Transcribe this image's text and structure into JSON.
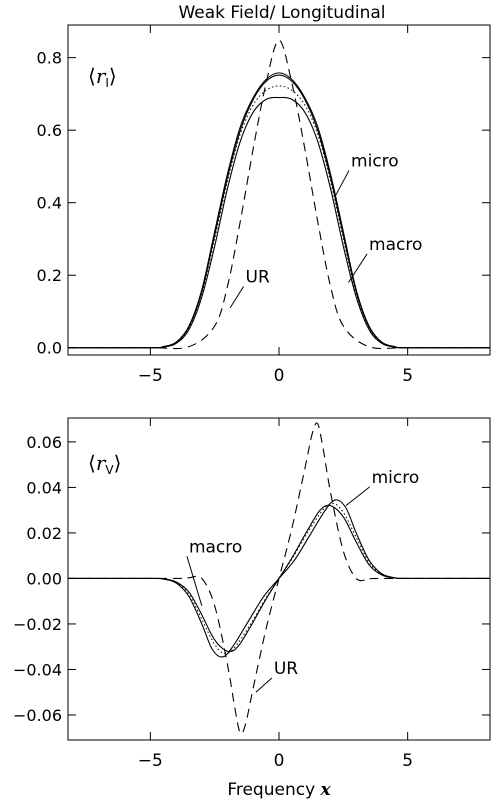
{
  "figure_title": "Weak Field/ Longitudinal",
  "xlabel_text": "Frequency",
  "xlabel_symbol": "x",
  "chart_data": [
    {
      "type": "line",
      "panel": "top",
      "label": {
        "symbol": "r",
        "subscript": "I"
      },
      "xlim": [
        -8.2,
        8.2
      ],
      "ylim": [
        -0.02,
        0.89
      ],
      "x_ticks": [
        -5,
        0,
        5
      ],
      "x_tick_labels": [
        "−5",
        "0",
        "5"
      ],
      "y_ticks": [
        0.0,
        0.2,
        0.4,
        0.6,
        0.8
      ],
      "y_tick_labels": [
        "0.0",
        "0.2",
        "0.4",
        "0.6",
        "0.8"
      ],
      "series": [
        {
          "name": "UR",
          "style": "dashed",
          "points": [
            [
              -8.2,
              0
            ],
            [
              -5,
              0
            ],
            [
              -3.5,
              0.003
            ],
            [
              -2.5,
              0.06
            ],
            [
              -2,
              0.17
            ],
            [
              -1.5,
              0.35
            ],
            [
              -1,
              0.55
            ],
            [
              -0.5,
              0.73
            ],
            [
              0,
              0.848
            ],
            [
              0.5,
              0.73
            ],
            [
              1,
              0.55
            ],
            [
              1.5,
              0.35
            ],
            [
              2,
              0.17
            ],
            [
              2.5,
              0.06
            ],
            [
              3.5,
              0.003
            ],
            [
              5,
              0
            ],
            [
              8.2,
              0
            ]
          ]
        },
        {
          "name": "micro",
          "style": "solid",
          "points": [
            [
              -8.2,
              0
            ],
            [
              -5,
              0
            ],
            [
              -4.5,
              0.003
            ],
            [
              -4,
              0.015
            ],
            [
              -3.5,
              0.06
            ],
            [
              -3,
              0.16
            ],
            [
              -2.5,
              0.32
            ],
            [
              -2,
              0.48
            ],
            [
              -1.5,
              0.61
            ],
            [
              -1,
              0.69
            ],
            [
              -0.5,
              0.74
            ],
            [
              0,
              0.758
            ],
            [
              0.5,
              0.74
            ],
            [
              1,
              0.69
            ],
            [
              1.5,
              0.61
            ],
            [
              2,
              0.48
            ],
            [
              2.5,
              0.32
            ],
            [
              3,
              0.16
            ],
            [
              3.5,
              0.06
            ],
            [
              4,
              0.015
            ],
            [
              4.5,
              0.003
            ],
            [
              5,
              0
            ],
            [
              8.2,
              0
            ]
          ]
        },
        {
          "name": "",
          "style": "solid",
          "points": [
            [
              -8.2,
              0
            ],
            [
              -5,
              0
            ],
            [
              -4.5,
              0.002
            ],
            [
              -4,
              0.012
            ],
            [
              -3.5,
              0.05
            ],
            [
              -3,
              0.14
            ],
            [
              -2.5,
              0.28
            ],
            [
              -2,
              0.44
            ],
            [
              -1.5,
              0.57
            ],
            [
              -1,
              0.65
            ],
            [
              -0.5,
              0.685
            ],
            [
              0,
              0.69
            ],
            [
              0.5,
              0.685
            ],
            [
              1,
              0.65
            ],
            [
              1.5,
              0.57
            ],
            [
              2,
              0.44
            ],
            [
              2.5,
              0.28
            ],
            [
              3,
              0.14
            ],
            [
              3.5,
              0.05
            ],
            [
              4,
              0.012
            ],
            [
              4.5,
              0.002
            ],
            [
              5,
              0
            ],
            [
              8.2,
              0
            ]
          ]
        },
        {
          "name": "",
          "style": "dotted",
          "points": [
            [
              -8.2,
              0
            ],
            [
              -5,
              0
            ],
            [
              -4.5,
              0.002
            ],
            [
              -4,
              0.013
            ],
            [
              -3.5,
              0.055
            ],
            [
              -3,
              0.15
            ],
            [
              -2.5,
              0.3
            ],
            [
              -2,
              0.46
            ],
            [
              -1.5,
              0.59
            ],
            [
              -1,
              0.67
            ],
            [
              -0.5,
              0.71
            ],
            [
              0,
              0.722
            ],
            [
              0.5,
              0.71
            ],
            [
              1,
              0.67
            ],
            [
              1.5,
              0.59
            ],
            [
              2,
              0.46
            ],
            [
              2.5,
              0.3
            ],
            [
              3,
              0.15
            ],
            [
              3.5,
              0.055
            ],
            [
              4,
              0.013
            ],
            [
              4.5,
              0.002
            ],
            [
              5,
              0
            ],
            [
              8.2,
              0
            ]
          ]
        },
        {
          "name": "",
          "style": "solid",
          "points": [
            [
              -8.2,
              0
            ],
            [
              -5,
              0
            ],
            [
              -4.5,
              0.003
            ],
            [
              -4,
              0.015
            ],
            [
              -3.5,
              0.058
            ],
            [
              -3,
              0.155
            ],
            [
              -2.5,
              0.31
            ],
            [
              -2,
              0.47
            ],
            [
              -1.5,
              0.6
            ],
            [
              -1,
              0.685
            ],
            [
              -0.5,
              0.735
            ],
            [
              0,
              0.752
            ],
            [
              0.5,
              0.735
            ],
            [
              1,
              0.685
            ],
            [
              1.5,
              0.6
            ],
            [
              2,
              0.47
            ],
            [
              2.5,
              0.31
            ],
            [
              3,
              0.155
            ],
            [
              3.5,
              0.058
            ],
            [
              4,
              0.015
            ],
            [
              4.5,
              0.003
            ],
            [
              5,
              0
            ],
            [
              8.2,
              0
            ]
          ]
        }
      ],
      "annotations": [
        {
          "text": "micro",
          "x": 2.8,
          "y": 0.5,
          "target": [
            2.2,
            0.42
          ]
        },
        {
          "text": "macro",
          "x": 3.5,
          "y": 0.27,
          "target": [
            2.7,
            0.18
          ]
        },
        {
          "text": "UR",
          "x": -1.3,
          "y": 0.18,
          "target": [
            -1.9,
            0.11
          ]
        }
      ]
    },
    {
      "type": "line",
      "panel": "bottom",
      "label": {
        "symbol": "r",
        "subscript": "V"
      },
      "xlim": [
        -8.2,
        8.2
      ],
      "ylim": [
        -0.071,
        0.0705
      ],
      "x_ticks": [
        -5,
        0,
        5
      ],
      "x_tick_labels": [
        "−5",
        "0",
        "5"
      ],
      "y_ticks": [
        -0.06,
        -0.04,
        -0.02,
        0.0,
        0.02,
        0.04,
        0.06
      ],
      "y_tick_labels": [
        "−0.06",
        "−0.04",
        "−0.02",
        "0.00",
        "0.02",
        "0.04",
        "0.06"
      ],
      "series": [
        {
          "name": "UR",
          "style": "dashed",
          "points": [
            [
              -8.2,
              0
            ],
            [
              -4,
              0
            ],
            [
              -3.5,
              0.0003
            ],
            [
              -3,
              0
            ],
            [
              -2.5,
              -0.012
            ],
            [
              -2,
              -0.038
            ],
            [
              -1.7,
              -0.058
            ],
            [
              -1.5,
              -0.068
            ],
            [
              -1.3,
              -0.064
            ],
            [
              -1,
              -0.048
            ],
            [
              -0.5,
              -0.022
            ],
            [
              0,
              0
            ],
            [
              0.5,
              0.022
            ],
            [
              1,
              0.048
            ],
            [
              1.3,
              0.064
            ],
            [
              1.5,
              0.068
            ],
            [
              1.7,
              0.058
            ],
            [
              2,
              0.038
            ],
            [
              2.5,
              0.012
            ],
            [
              3,
              0
            ],
            [
              3.5,
              -0.0003
            ],
            [
              4,
              0
            ],
            [
              8.2,
              0
            ]
          ]
        },
        {
          "name": "micro",
          "style": "solid",
          "points": [
            [
              -8.2,
              0
            ],
            [
              -5,
              0
            ],
            [
              -4.5,
              -0.0003
            ],
            [
              -4,
              -0.002
            ],
            [
              -3.5,
              -0.008
            ],
            [
              -3,
              -0.02
            ],
            [
              -2.6,
              -0.031
            ],
            [
              -2.2,
              -0.0345
            ],
            [
              -1.8,
              -0.03
            ],
            [
              -1.2,
              -0.019
            ],
            [
              -0.6,
              -0.008
            ],
            [
              0,
              0
            ],
            [
              0.6,
              0.008
            ],
            [
              1.2,
              0.019
            ],
            [
              1.8,
              0.03
            ],
            [
              2.2,
              0.0345
            ],
            [
              2.6,
              0.031
            ],
            [
              3,
              0.02
            ],
            [
              3.5,
              0.008
            ],
            [
              4,
              0.002
            ],
            [
              4.5,
              0.0003
            ],
            [
              5,
              0
            ],
            [
              8.2,
              0
            ]
          ]
        },
        {
          "name": "macro",
          "style": "solid",
          "points": [
            [
              -8.2,
              0
            ],
            [
              -5,
              0
            ],
            [
              -4.5,
              -0.0002
            ],
            [
              -4,
              -0.0015
            ],
            [
              -3.5,
              -0.006
            ],
            [
              -3,
              -0.016
            ],
            [
              -2.5,
              -0.027
            ],
            [
              -2,
              -0.032
            ],
            [
              -1.6,
              -0.03
            ],
            [
              -1.1,
              -0.021
            ],
            [
              -0.5,
              -0.009
            ],
            [
              0,
              0
            ],
            [
              0.5,
              0.009
            ],
            [
              1.1,
              0.021
            ],
            [
              1.6,
              0.03
            ],
            [
              2,
              0.032
            ],
            [
              2.5,
              0.027
            ],
            [
              3,
              0.016
            ],
            [
              3.5,
              0.006
            ],
            [
              4,
              0.0015
            ],
            [
              4.5,
              0.0002
            ],
            [
              5,
              0
            ],
            [
              8.2,
              0
            ]
          ]
        },
        {
          "name": "",
          "style": "dotted",
          "points": [
            [
              -8.2,
              0
            ],
            [
              -5,
              0
            ],
            [
              -4.5,
              -0.0003
            ],
            [
              -4,
              -0.0018
            ],
            [
              -3.5,
              -0.007
            ],
            [
              -3,
              -0.018
            ],
            [
              -2.5,
              -0.029
            ],
            [
              -2.1,
              -0.033
            ],
            [
              -1.7,
              -0.03
            ],
            [
              -1.1,
              -0.02
            ],
            [
              -0.5,
              -0.0085
            ],
            [
              0,
              0
            ],
            [
              0.5,
              0.0085
            ],
            [
              1.1,
              0.02
            ],
            [
              1.7,
              0.03
            ],
            [
              2.1,
              0.033
            ],
            [
              2.5,
              0.029
            ],
            [
              3,
              0.018
            ],
            [
              3.5,
              0.007
            ],
            [
              4,
              0.0018
            ],
            [
              4.5,
              0.0003
            ],
            [
              5,
              0
            ],
            [
              8.2,
              0
            ]
          ]
        }
      ],
      "annotations": [
        {
          "text": "micro",
          "x": 3.6,
          "y": 0.042,
          "target": [
            2.6,
            0.032
          ]
        },
        {
          "text": "macro",
          "x": -3.5,
          "y": 0.0115,
          "target": [
            -3.0,
            -0.012
          ]
        },
        {
          "text": "UR",
          "x": -0.2,
          "y": -0.042,
          "target": [
            -0.9,
            -0.05
          ]
        }
      ]
    }
  ]
}
